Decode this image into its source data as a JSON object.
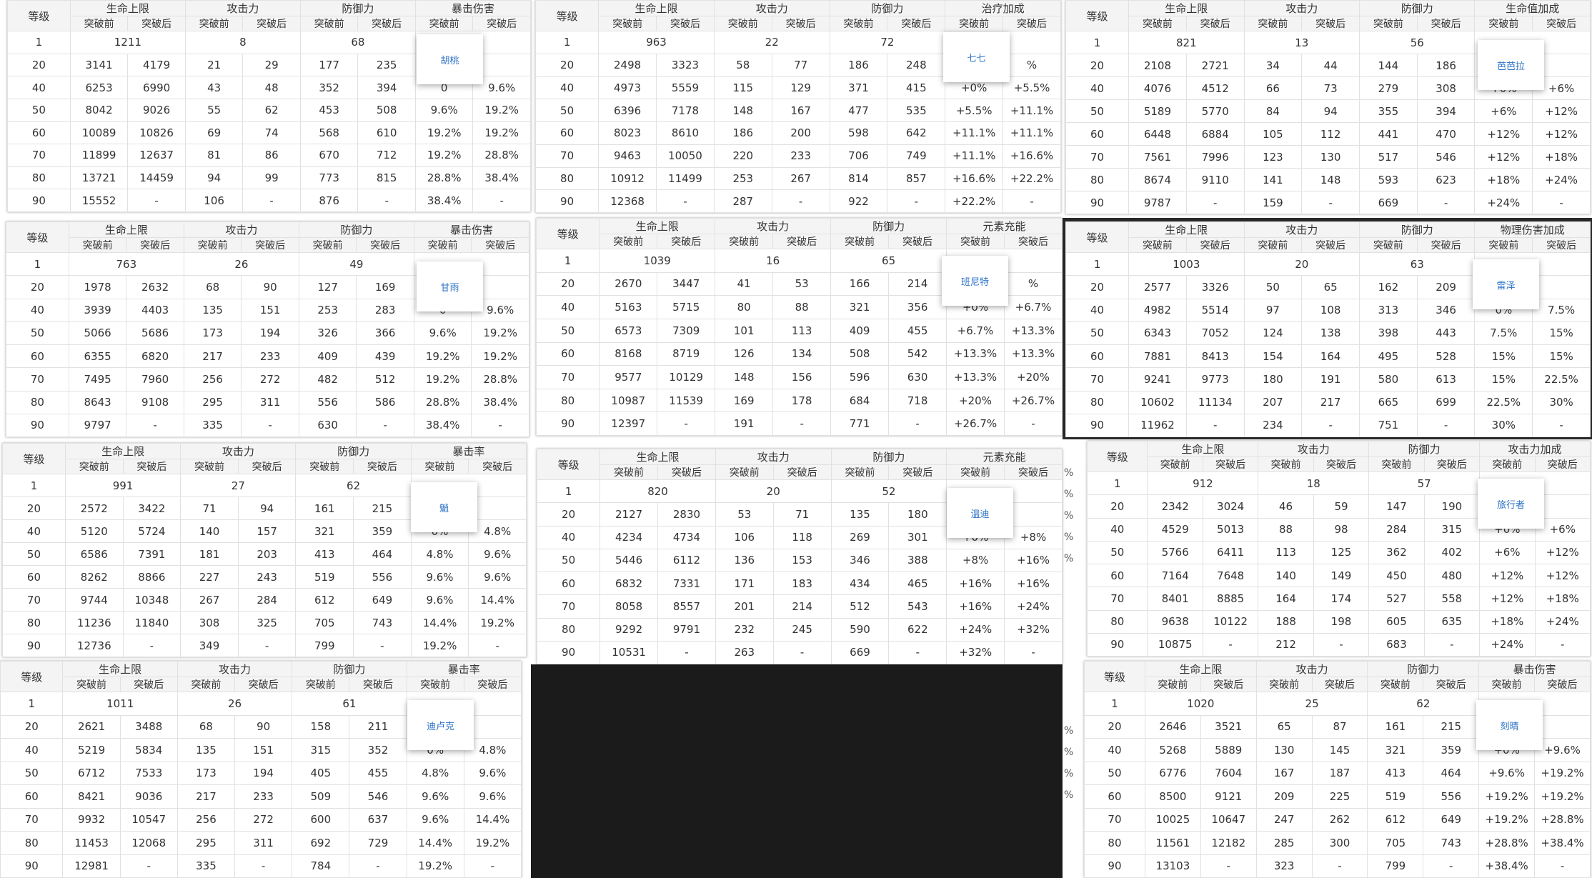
{
  "header": {
    "level": "等级",
    "hp": "生命上限",
    "atk": "攻击力",
    "def": "防御力",
    "before": "突破前",
    "after": "突破后"
  },
  "ghost_text": [
    "%",
    "%",
    "%",
    "%",
    "%",
    "%",
    "%",
    "%",
    "%"
  ],
  "tables": [
    {
      "popup": "胡桃",
      "special": "暴击伤害",
      "rows": [
        [
          "1",
          "1211",
          "",
          "8",
          "",
          "68",
          "",
          "",
          ""
        ],
        [
          "20",
          "3141",
          "4179",
          "21",
          "29",
          "177",
          "235",
          "",
          ""
        ],
        [
          "40",
          "6253",
          "6990",
          "43",
          "48",
          "352",
          "394",
          "0",
          "9.6%"
        ],
        [
          "50",
          "8042",
          "9026",
          "55",
          "62",
          "453",
          "508",
          "9.6%",
          "19.2%"
        ],
        [
          "60",
          "10089",
          "10826",
          "69",
          "74",
          "568",
          "610",
          "19.2%",
          "19.2%"
        ],
        [
          "70",
          "11899",
          "12637",
          "81",
          "86",
          "670",
          "712",
          "19.2%",
          "28.8%"
        ],
        [
          "80",
          "13721",
          "14459",
          "94",
          "99",
          "773",
          "815",
          "28.8%",
          "38.4%"
        ],
        [
          "90",
          "15552",
          "-",
          "106",
          "-",
          "876",
          "-",
          "38.4%",
          "-"
        ]
      ]
    },
    {
      "popup": "七七",
      "special": "治疗加成",
      "rows": [
        [
          "1",
          "963",
          "",
          "22",
          "",
          "72",
          "",
          "",
          ""
        ],
        [
          "20",
          "2498",
          "3323",
          "58",
          "77",
          "186",
          "248",
          "",
          "%"
        ],
        [
          "40",
          "4973",
          "5559",
          "115",
          "129",
          "371",
          "415",
          "+0%",
          "+5.5%"
        ],
        [
          "50",
          "6396",
          "7178",
          "148",
          "167",
          "477",
          "535",
          "+5.5%",
          "+11.1%"
        ],
        [
          "60",
          "8023",
          "8610",
          "186",
          "200",
          "598",
          "642",
          "+11.1%",
          "+11.1%"
        ],
        [
          "70",
          "9463",
          "10050",
          "220",
          "233",
          "706",
          "749",
          "+11.1%",
          "+16.6%"
        ],
        [
          "80",
          "10912",
          "11499",
          "253",
          "267",
          "814",
          "857",
          "+16.6%",
          "+22.2%"
        ],
        [
          "90",
          "12368",
          "-",
          "287",
          "-",
          "922",
          "-",
          "+22.2%",
          "-"
        ]
      ]
    },
    {
      "popup": "芭芭拉",
      "special": "生命值加成",
      "rows": [
        [
          "1",
          "821",
          "",
          "13",
          "",
          "56",
          "",
          "",
          ""
        ],
        [
          "20",
          "2108",
          "2721",
          "34",
          "44",
          "144",
          "186",
          "",
          ""
        ],
        [
          "40",
          "4076",
          "4512",
          "66",
          "73",
          "279",
          "308",
          "+0%",
          "+6%"
        ],
        [
          "50",
          "5189",
          "5770",
          "84",
          "94",
          "355",
          "394",
          "+6%",
          "+12%"
        ],
        [
          "60",
          "6448",
          "6884",
          "105",
          "112",
          "441",
          "470",
          "+12%",
          "+12%"
        ],
        [
          "70",
          "7561",
          "7996",
          "123",
          "130",
          "517",
          "546",
          "+12%",
          "+18%"
        ],
        [
          "80",
          "8674",
          "9110",
          "141",
          "148",
          "593",
          "623",
          "+18%",
          "+24%"
        ],
        [
          "90",
          "9787",
          "-",
          "159",
          "-",
          "669",
          "-",
          "+24%",
          "-"
        ]
      ]
    },
    {
      "popup": "甘雨",
      "special": "暴击伤害",
      "rows": [
        [
          "1",
          "763",
          "",
          "26",
          "",
          "49",
          "",
          "",
          ""
        ],
        [
          "20",
          "1978",
          "2632",
          "68",
          "90",
          "127",
          "169",
          "",
          ""
        ],
        [
          "40",
          "3939",
          "4403",
          "135",
          "151",
          "253",
          "283",
          "0",
          "9.6%"
        ],
        [
          "50",
          "5066",
          "5686",
          "173",
          "194",
          "326",
          "366",
          "9.6%",
          "19.2%"
        ],
        [
          "60",
          "6355",
          "6820",
          "217",
          "233",
          "409",
          "439",
          "19.2%",
          "19.2%"
        ],
        [
          "70",
          "7495",
          "7960",
          "256",
          "272",
          "482",
          "512",
          "19.2%",
          "28.8%"
        ],
        [
          "80",
          "8643",
          "9108",
          "295",
          "311",
          "556",
          "586",
          "28.8%",
          "38.4%"
        ],
        [
          "90",
          "9797",
          "-",
          "335",
          "-",
          "630",
          "-",
          "38.4%",
          "-"
        ]
      ]
    },
    {
      "popup": "班尼特",
      "special": "元素充能",
      "rows": [
        [
          "1",
          "1039",
          "",
          "16",
          "",
          "65",
          "",
          "",
          ""
        ],
        [
          "20",
          "2670",
          "3447",
          "41",
          "53",
          "166",
          "214",
          "",
          "%"
        ],
        [
          "40",
          "5163",
          "5715",
          "80",
          "88",
          "321",
          "356",
          "+0%",
          "+6.7%"
        ],
        [
          "50",
          "6573",
          "7309",
          "101",
          "113",
          "409",
          "455",
          "+6.7%",
          "+13.3%"
        ],
        [
          "60",
          "8168",
          "8719",
          "126",
          "134",
          "508",
          "542",
          "+13.3%",
          "+13.3%"
        ],
        [
          "70",
          "9577",
          "10129",
          "148",
          "156",
          "596",
          "630",
          "+13.3%",
          "+20%"
        ],
        [
          "80",
          "10987",
          "11539",
          "169",
          "178",
          "684",
          "718",
          "+20%",
          "+26.7%"
        ],
        [
          "90",
          "12397",
          "-",
          "191",
          "-",
          "771",
          "-",
          "+26.7%",
          "-"
        ]
      ]
    },
    {
      "popup": "雷泽",
      "special": "物理伤害加成",
      "rows": [
        [
          "1",
          "1003",
          "",
          "20",
          "",
          "63",
          "",
          "",
          ""
        ],
        [
          "20",
          "2577",
          "3326",
          "50",
          "65",
          "162",
          "209",
          "",
          ""
        ],
        [
          "40",
          "4982",
          "5514",
          "97",
          "108",
          "313",
          "346",
          "0%",
          "7.5%"
        ],
        [
          "50",
          "6343",
          "7052",
          "124",
          "138",
          "398",
          "443",
          "7.5%",
          "15%"
        ],
        [
          "60",
          "7881",
          "8413",
          "154",
          "164",
          "495",
          "528",
          "15%",
          "15%"
        ],
        [
          "70",
          "9241",
          "9773",
          "180",
          "191",
          "580",
          "613",
          "15%",
          "22.5%"
        ],
        [
          "80",
          "10602",
          "11134",
          "207",
          "217",
          "665",
          "699",
          "22.5%",
          "30%"
        ],
        [
          "90",
          "11962",
          "-",
          "234",
          "-",
          "751",
          "-",
          "30%",
          "-"
        ]
      ]
    },
    {
      "popup": "魈",
      "special": "暴击率",
      "rows": [
        [
          "1",
          "991",
          "",
          "27",
          "",
          "62",
          "",
          "",
          ""
        ],
        [
          "20",
          "2572",
          "3422",
          "71",
          "94",
          "161",
          "215",
          "",
          ""
        ],
        [
          "40",
          "5120",
          "5724",
          "140",
          "157",
          "321",
          "359",
          "0%",
          "4.8%"
        ],
        [
          "50",
          "6586",
          "7391",
          "181",
          "203",
          "413",
          "464",
          "4.8%",
          "9.6%"
        ],
        [
          "60",
          "8262",
          "8866",
          "227",
          "243",
          "519",
          "556",
          "9.6%",
          "9.6%"
        ],
        [
          "70",
          "9744",
          "10348",
          "267",
          "284",
          "612",
          "649",
          "9.6%",
          "14.4%"
        ],
        [
          "80",
          "11236",
          "11840",
          "308",
          "325",
          "705",
          "743",
          "14.4%",
          "19.2%"
        ],
        [
          "90",
          "12736",
          "-",
          "349",
          "-",
          "799",
          "-",
          "19.2%",
          "-"
        ]
      ]
    },
    {
      "popup": "温迪",
      "special": "元素充能",
      "rows": [
        [
          "1",
          "820",
          "",
          "20",
          "",
          "52",
          "",
          "",
          ""
        ],
        [
          "20",
          "2127",
          "2830",
          "53",
          "71",
          "135",
          "180",
          "",
          ""
        ],
        [
          "40",
          "4234",
          "4734",
          "106",
          "118",
          "269",
          "301",
          "+0%",
          "+8%"
        ],
        [
          "50",
          "5446",
          "6112",
          "136",
          "153",
          "346",
          "388",
          "+8%",
          "+16%"
        ],
        [
          "60",
          "6832",
          "7331",
          "171",
          "183",
          "434",
          "465",
          "+16%",
          "+16%"
        ],
        [
          "70",
          "8058",
          "8557",
          "201",
          "214",
          "512",
          "543",
          "+16%",
          "+24%"
        ],
        [
          "80",
          "9292",
          "9791",
          "232",
          "245",
          "590",
          "622",
          "+24%",
          "+32%"
        ],
        [
          "90",
          "10531",
          "-",
          "263",
          "-",
          "669",
          "-",
          "+32%",
          "-"
        ]
      ]
    },
    {
      "popup": "旅行者",
      "special": "攻击力加成",
      "rows": [
        [
          "1",
          "912",
          "",
          "18",
          "",
          "57",
          "",
          "",
          ""
        ],
        [
          "20",
          "2342",
          "3024",
          "46",
          "59",
          "147",
          "190",
          "",
          ""
        ],
        [
          "40",
          "4529",
          "5013",
          "88",
          "98",
          "284",
          "315",
          "+0%",
          "+6%"
        ],
        [
          "50",
          "5766",
          "6411",
          "113",
          "125",
          "362",
          "402",
          "+6%",
          "+12%"
        ],
        [
          "60",
          "7164",
          "7648",
          "140",
          "149",
          "450",
          "480",
          "+12%",
          "+12%"
        ],
        [
          "70",
          "8401",
          "8885",
          "164",
          "174",
          "527",
          "558",
          "+12%",
          "+18%"
        ],
        [
          "80",
          "9638",
          "10122",
          "188",
          "198",
          "605",
          "635",
          "+18%",
          "+24%"
        ],
        [
          "90",
          "10875",
          "-",
          "212",
          "-",
          "683",
          "-",
          "+24%",
          "-"
        ]
      ]
    },
    {
      "popup": "迪卢克",
      "special": "暴击率",
      "rows": [
        [
          "1",
          "1011",
          "",
          "26",
          "",
          "61",
          "",
          "",
          ""
        ],
        [
          "20",
          "2621",
          "3488",
          "68",
          "90",
          "158",
          "211",
          "",
          ""
        ],
        [
          "40",
          "5219",
          "5834",
          "135",
          "151",
          "315",
          "352",
          "0%",
          "4.8%"
        ],
        [
          "50",
          "6712",
          "7533",
          "173",
          "194",
          "405",
          "455",
          "4.8%",
          "9.6%"
        ],
        [
          "60",
          "8421",
          "9036",
          "217",
          "233",
          "509",
          "546",
          "9.6%",
          "9.6%"
        ],
        [
          "70",
          "9932",
          "10547",
          "256",
          "272",
          "600",
          "637",
          "9.6%",
          "14.4%"
        ],
        [
          "80",
          "11453",
          "12068",
          "295",
          "311",
          "692",
          "729",
          "14.4%",
          "19.2%"
        ],
        [
          "90",
          "12981",
          "-",
          "335",
          "-",
          "784",
          "-",
          "19.2%",
          "-"
        ]
      ]
    },
    {
      "popup": "刻晴",
      "special": "暴击伤害",
      "rows": [
        [
          "1",
          "1020",
          "",
          "25",
          "",
          "62",
          "",
          "",
          ""
        ],
        [
          "20",
          "2646",
          "3521",
          "65",
          "87",
          "161",
          "215",
          "",
          ""
        ],
        [
          "40",
          "5268",
          "5889",
          "130",
          "145",
          "321",
          "359",
          "+0%",
          "+9.6%"
        ],
        [
          "50",
          "6776",
          "7604",
          "167",
          "187",
          "413",
          "464",
          "+9.6%",
          "+19.2%"
        ],
        [
          "60",
          "8500",
          "9121",
          "209",
          "225",
          "519",
          "556",
          "+19.2%",
          "+19.2%"
        ],
        [
          "70",
          "10025",
          "10647",
          "247",
          "262",
          "612",
          "649",
          "+19.2%",
          "+28.8%"
        ],
        [
          "80",
          "11561",
          "12182",
          "285",
          "300",
          "705",
          "743",
          "+28.8%",
          "+38.4%"
        ],
        [
          "90",
          "13103",
          "-",
          "323",
          "-",
          "799",
          "-",
          "+38.4%",
          "-"
        ]
      ]
    }
  ]
}
